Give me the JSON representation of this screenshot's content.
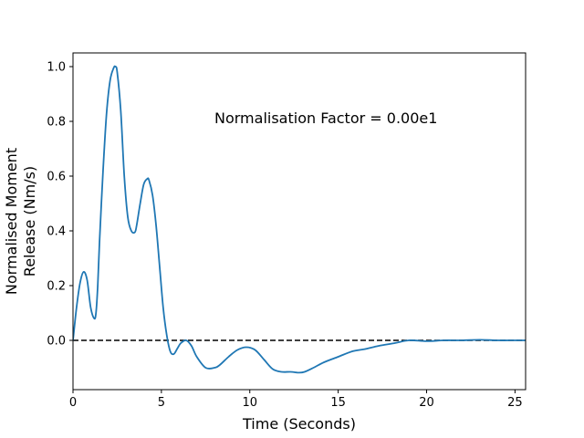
{
  "chart_data": {
    "type": "line",
    "xlabel": "Time (Seconds)",
    "ylabel_lines": [
      "Normalised Moment",
      "Release (Nm/s)"
    ],
    "annotation": "Normalisation Factor = 0.00e1",
    "xlim": [
      0,
      25.6
    ],
    "ylim": [
      -0.18,
      1.05
    ],
    "xticks": [
      0,
      5,
      10,
      15,
      20,
      25
    ],
    "yticks": [
      0.0,
      0.2,
      0.4,
      0.6,
      0.8,
      1.0
    ],
    "grid": false,
    "line_color": "#1f77b4",
    "reference_line": {
      "y": 0.0,
      "style": "dashed",
      "color": "#000000"
    },
    "series": [
      {
        "x": [
          0,
          0.2,
          0.4,
          0.6,
          0.8,
          1.0,
          1.2,
          1.3,
          1.4,
          1.5,
          1.7,
          1.9,
          2.1,
          2.3,
          2.4,
          2.5,
          2.7,
          2.9,
          3.1,
          3.3,
          3.5,
          3.6,
          3.8,
          4.0,
          4.2,
          4.3,
          4.5,
          4.7,
          4.9,
          5.1,
          5.3,
          5.5,
          5.7,
          5.9,
          6.1,
          6.4,
          6.7,
          7.0,
          7.5,
          8.0,
          8.3,
          8.8,
          9.3,
          9.8,
          10.3,
          10.8,
          11.3,
          11.8,
          12.3,
          12.8,
          13.1,
          13.6,
          14.2,
          15.0,
          15.8,
          16.5,
          17.3,
          18.2,
          19.0,
          20.0,
          21.0,
          22.0,
          23.0,
          24.0,
          25.0,
          25.6
        ],
        "y": [
          0.0,
          0.12,
          0.21,
          0.25,
          0.22,
          0.12,
          0.08,
          0.1,
          0.2,
          0.36,
          0.62,
          0.83,
          0.95,
          0.995,
          1.0,
          0.98,
          0.84,
          0.6,
          0.45,
          0.4,
          0.395,
          0.42,
          0.5,
          0.57,
          0.59,
          0.585,
          0.53,
          0.42,
          0.27,
          0.12,
          0.02,
          -0.04,
          -0.05,
          -0.03,
          -0.01,
          0.0,
          -0.02,
          -0.06,
          -0.1,
          -0.1,
          -0.09,
          -0.06,
          -0.035,
          -0.025,
          -0.035,
          -0.07,
          -0.105,
          -0.115,
          -0.115,
          -0.118,
          -0.115,
          -0.1,
          -0.08,
          -0.06,
          -0.04,
          -0.032,
          -0.02,
          -0.01,
          0.0,
          -0.003,
          0.0,
          0.0,
          0.002,
          0.0,
          0.0,
          0.0
        ]
      }
    ]
  }
}
